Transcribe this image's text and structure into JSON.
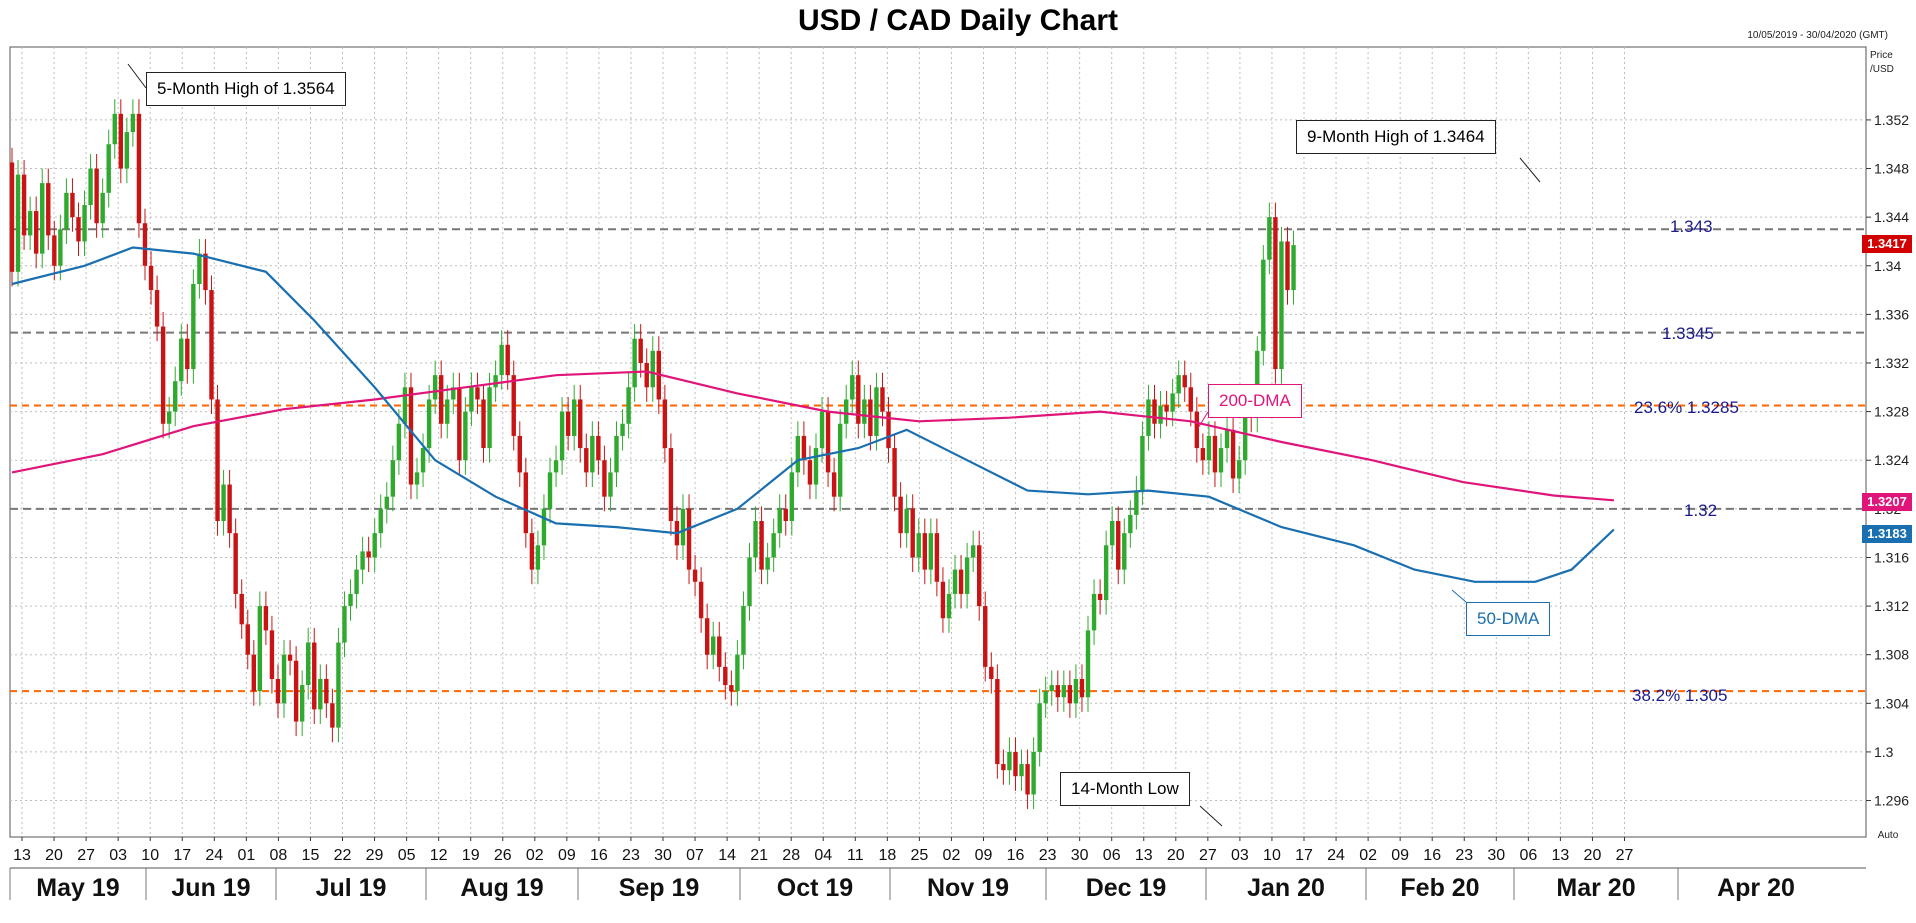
{
  "chart_data": {
    "type": "candlestick",
    "title": "USD / CAD Daily Chart",
    "date_range": "10/05/2019 - 30/04/2020 (GMT)",
    "price_unit": [
      "Price",
      "/USD"
    ],
    "ylim": [
      1.293,
      1.358
    ],
    "y_ticks": [
      "1.352",
      "1.348",
      "1.344",
      "1.34",
      "1.336",
      "1.332",
      "1.328",
      "1.324",
      "1.32",
      "1.316",
      "1.312",
      "1.308",
      "1.304",
      "1.3",
      "1.296"
    ],
    "x_day_ticks": [
      "13",
      "20",
      "27",
      "03",
      "10",
      "17",
      "24",
      "01",
      "08",
      "15",
      "22",
      "29",
      "05",
      "12",
      "19",
      "26",
      "02",
      "09",
      "16",
      "23",
      "30",
      "07",
      "14",
      "21",
      "28",
      "04",
      "11",
      "18",
      "25",
      "02",
      "09",
      "16",
      "23",
      "30",
      "06",
      "13",
      "20",
      "27",
      "03",
      "10",
      "17",
      "24",
      "02",
      "09",
      "16",
      "23",
      "30",
      "06",
      "13",
      "20",
      "27"
    ],
    "x_month_labels": [
      "May 19",
      "Jun 19",
      "Jul 19",
      "Aug 19",
      "Sep 19",
      "Oct 19",
      "Nov 19",
      "Dec 19",
      "Jan 20",
      "Feb 20",
      "Mar 20",
      "Apr 20"
    ],
    "x_corner_label": "Auto",
    "candles": [
      [
        1.3485,
        1.3395
      ],
      [
        1.3395,
        1.3475
      ],
      [
        1.3475,
        1.3425
      ],
      [
        1.3425,
        1.3445
      ],
      [
        1.3445,
        1.341
      ],
      [
        1.341,
        1.3468
      ],
      [
        1.3468,
        1.3425
      ],
      [
        1.3425,
        1.34
      ],
      [
        1.34,
        1.343
      ],
      [
        1.343,
        1.346
      ],
      [
        1.346,
        1.344
      ],
      [
        1.344,
        1.342
      ],
      [
        1.342,
        1.345
      ],
      [
        1.345,
        1.348
      ],
      [
        1.348,
        1.3435
      ],
      [
        1.3435,
        1.346
      ],
      [
        1.346,
        1.35
      ],
      [
        1.35,
        1.3525
      ],
      [
        1.3525,
        1.348
      ],
      [
        1.348,
        1.351
      ],
      [
        1.351,
        1.3525
      ],
      [
        1.3525,
        1.3435
      ],
      [
        1.3435,
        1.34
      ],
      [
        1.34,
        1.338
      ],
      [
        1.338,
        1.335
      ],
      [
        1.335,
        1.327
      ],
      [
        1.327,
        1.328
      ],
      [
        1.328,
        1.3305
      ],
      [
        1.3305,
        1.334
      ],
      [
        1.334,
        1.3315
      ],
      [
        1.3315,
        1.3385
      ],
      [
        1.3385,
        1.341
      ],
      [
        1.341,
        1.338
      ],
      [
        1.338,
        1.329
      ],
      [
        1.329,
        1.319
      ],
      [
        1.319,
        1.322
      ],
      [
        1.322,
        1.318
      ],
      [
        1.318,
        1.313
      ],
      [
        1.313,
        1.3105
      ],
      [
        1.3105,
        1.308
      ],
      [
        1.308,
        1.305
      ],
      [
        1.305,
        1.312
      ],
      [
        1.312,
        1.31
      ],
      [
        1.31,
        1.306
      ],
      [
        1.306,
        1.304
      ],
      [
        1.304,
        1.308
      ],
      [
        1.308,
        1.3075
      ],
      [
        1.3075,
        1.3025
      ],
      [
        1.3025,
        1.3055
      ],
      [
        1.3055,
        1.309
      ],
      [
        1.309,
        1.3035
      ],
      [
        1.3035,
        1.306
      ],
      [
        1.306,
        1.304
      ],
      [
        1.304,
        1.302
      ],
      [
        1.302,
        1.309
      ],
      [
        1.309,
        1.312
      ],
      [
        1.312,
        1.313
      ],
      [
        1.313,
        1.315
      ],
      [
        1.315,
        1.3165
      ],
      [
        1.3165,
        1.316
      ],
      [
        1.316,
        1.318
      ],
      [
        1.318,
        1.32
      ],
      [
        1.32,
        1.321
      ],
      [
        1.321,
        1.324
      ],
      [
        1.324,
        1.327
      ],
      [
        1.327,
        1.33
      ],
      [
        1.33,
        1.322
      ],
      [
        1.322,
        1.323
      ],
      [
        1.323,
        1.325
      ],
      [
        1.325,
        1.329
      ],
      [
        1.329,
        1.331
      ],
      [
        1.331,
        1.327
      ],
      [
        1.327,
        1.329
      ],
      [
        1.329,
        1.33
      ],
      [
        1.33,
        1.324
      ],
      [
        1.324,
        1.328
      ],
      [
        1.328,
        1.33
      ],
      [
        1.33,
        1.329
      ],
      [
        1.329,
        1.325
      ],
      [
        1.325,
        1.33
      ],
      [
        1.33,
        1.331
      ],
      [
        1.331,
        1.3335
      ],
      [
        1.3335,
        1.331
      ],
      [
        1.331,
        1.326
      ],
      [
        1.326,
        1.323
      ],
      [
        1.323,
        1.318
      ],
      [
        1.318,
        1.315
      ],
      [
        1.315,
        1.317
      ],
      [
        1.317,
        1.32
      ],
      [
        1.32,
        1.323
      ],
      [
        1.323,
        1.324
      ],
      [
        1.324,
        1.328
      ],
      [
        1.328,
        1.326
      ],
      [
        1.326,
        1.329
      ],
      [
        1.329,
        1.325
      ],
      [
        1.325,
        1.323
      ],
      [
        1.323,
        1.326
      ],
      [
        1.326,
        1.324
      ],
      [
        1.324,
        1.321
      ],
      [
        1.321,
        1.323
      ],
      [
        1.323,
        1.326
      ],
      [
        1.326,
        1.327
      ],
      [
        1.327,
        1.33
      ],
      [
        1.33,
        1.334
      ],
      [
        1.334,
        1.332
      ],
      [
        1.332,
        1.33
      ],
      [
        1.33,
        1.333
      ],
      [
        1.333,
        1.329
      ],
      [
        1.329,
        1.325
      ],
      [
        1.325,
        1.319
      ],
      [
        1.319,
        1.317
      ],
      [
        1.317,
        1.32
      ],
      [
        1.32,
        1.315
      ],
      [
        1.315,
        1.314
      ],
      [
        1.314,
        1.311
      ],
      [
        1.311,
        1.308
      ],
      [
        1.308,
        1.3095
      ],
      [
        1.3095,
        1.307
      ],
      [
        1.307,
        1.3055
      ],
      [
        1.3055,
        1.305
      ],
      [
        1.305,
        1.308
      ],
      [
        1.308,
        1.312
      ],
      [
        1.312,
        1.316
      ],
      [
        1.316,
        1.319
      ],
      [
        1.319,
        1.315
      ],
      [
        1.315,
        1.316
      ],
      [
        1.316,
        1.318
      ],
      [
        1.318,
        1.32
      ],
      [
        1.32,
        1.319
      ],
      [
        1.319,
        1.323
      ],
      [
        1.323,
        1.326
      ],
      [
        1.326,
        1.324
      ],
      [
        1.324,
        1.322
      ],
      [
        1.322,
        1.325
      ],
      [
        1.325,
        1.328
      ],
      [
        1.328,
        1.323
      ],
      [
        1.323,
        1.321
      ],
      [
        1.321,
        1.327
      ],
      [
        1.327,
        1.329
      ],
      [
        1.329,
        1.331
      ],
      [
        1.331,
        1.327
      ],
      [
        1.327,
        1.329
      ],
      [
        1.329,
        1.326
      ],
      [
        1.326,
        1.33
      ],
      [
        1.33,
        1.328
      ],
      [
        1.328,
        1.325
      ],
      [
        1.325,
        1.321
      ],
      [
        1.321,
        1.318
      ],
      [
        1.318,
        1.32
      ],
      [
        1.32,
        1.316
      ],
      [
        1.316,
        1.318
      ],
      [
        1.318,
        1.315
      ],
      [
        1.315,
        1.318
      ],
      [
        1.318,
        1.314
      ],
      [
        1.314,
        1.311
      ],
      [
        1.311,
        1.313
      ],
      [
        1.313,
        1.315
      ],
      [
        1.315,
        1.313
      ],
      [
        1.313,
        1.316
      ],
      [
        1.316,
        1.317
      ],
      [
        1.317,
        1.312
      ],
      [
        1.312,
        1.307
      ],
      [
        1.307,
        1.306
      ],
      [
        1.306,
        1.299
      ],
      [
        1.299,
        1.2985
      ],
      [
        1.2985,
        1.3
      ],
      [
        1.3,
        1.298
      ],
      [
        1.298,
        1.299
      ],
      [
        1.299,
        1.2965
      ],
      [
        1.2965,
        1.3
      ],
      [
        1.3,
        1.304
      ],
      [
        1.304,
        1.305
      ],
      [
        1.305,
        1.3055
      ],
      [
        1.3055,
        1.3045
      ],
      [
        1.3045,
        1.3055
      ],
      [
        1.3055,
        1.304
      ],
      [
        1.304,
        1.306
      ],
      [
        1.306,
        1.3045
      ],
      [
        1.3045,
        1.31
      ],
      [
        1.31,
        1.313
      ],
      [
        1.313,
        1.3125
      ],
      [
        1.3125,
        1.317
      ],
      [
        1.317,
        1.319
      ],
      [
        1.319,
        1.315
      ],
      [
        1.315,
        1.318
      ],
      [
        1.318,
        1.3195
      ],
      [
        1.3195,
        1.3215
      ],
      [
        1.3215,
        1.326
      ],
      [
        1.326,
        1.329
      ],
      [
        1.329,
        1.327
      ],
      [
        1.327,
        1.3285
      ],
      [
        1.3285,
        1.328
      ],
      [
        1.328,
        1.3295
      ],
      [
        1.3295,
        1.331
      ],
      [
        1.331,
        1.33
      ],
      [
        1.33,
        1.328
      ],
      [
        1.328,
        1.325
      ],
      [
        1.325,
        1.324
      ],
      [
        1.324,
        1.326
      ],
      [
        1.326,
        1.323
      ],
      [
        1.323,
        1.325
      ],
      [
        1.325,
        1.3265
      ],
      [
        1.3265,
        1.3225
      ],
      [
        1.3225,
        1.324
      ],
      [
        1.324,
        1.329
      ],
      [
        1.329,
        1.3275
      ],
      [
        1.3275,
        1.333
      ],
      [
        1.333,
        1.3405
      ],
      [
        1.3405,
        1.344
      ],
      [
        1.344,
        1.3315
      ],
      [
        1.3315,
        1.342
      ],
      [
        1.342,
        1.338
      ],
      [
        1.338,
        1.3417
      ]
    ],
    "series": [
      {
        "name": "200-DMA",
        "color": "#e0157a",
        "points": [
          [
            0,
            1.323
          ],
          [
            15,
            1.3245
          ],
          [
            30,
            1.3268
          ],
          [
            45,
            1.3282
          ],
          [
            60,
            1.329
          ],
          [
            75,
            1.33
          ],
          [
            90,
            1.331
          ],
          [
            105,
            1.3313
          ],
          [
            120,
            1.3295
          ],
          [
            135,
            1.328
          ],
          [
            150,
            1.3272
          ],
          [
            165,
            1.3275
          ],
          [
            180,
            1.328
          ],
          [
            195,
            1.3272
          ],
          [
            210,
            1.3255
          ],
          [
            225,
            1.324
          ],
          [
            240,
            1.3222
          ],
          [
            255,
            1.3211
          ],
          [
            265,
            1.3207
          ]
        ]
      },
      {
        "name": "50-DMA",
        "color": "#1a6fb0",
        "points": [
          [
            0,
            1.3385
          ],
          [
            12,
            1.34
          ],
          [
            20,
            1.3415
          ],
          [
            30,
            1.341
          ],
          [
            42,
            1.3395
          ],
          [
            50,
            1.3355
          ],
          [
            60,
            1.33
          ],
          [
            70,
            1.324
          ],
          [
            80,
            1.321
          ],
          [
            90,
            1.3188
          ],
          [
            100,
            1.3185
          ],
          [
            110,
            1.318
          ],
          [
            120,
            1.32
          ],
          [
            130,
            1.324
          ],
          [
            140,
            1.325
          ],
          [
            148,
            1.3265
          ],
          [
            158,
            1.324
          ],
          [
            168,
            1.3215
          ],
          [
            178,
            1.3212
          ],
          [
            188,
            1.3215
          ],
          [
            198,
            1.321
          ],
          [
            210,
            1.3185
          ],
          [
            222,
            1.317
          ],
          [
            232,
            1.315
          ],
          [
            242,
            1.314
          ],
          [
            252,
            1.314
          ],
          [
            258,
            1.315
          ],
          [
            265,
            1.3183
          ]
        ]
      }
    ],
    "levels": [
      {
        "value": 1.343,
        "label": "1.343",
        "style": "grey-dashed"
      },
      {
        "value": 1.3345,
        "label": "1.3345",
        "style": "grey-dashed"
      },
      {
        "value": 1.3285,
        "label": "23.6%   1.3285",
        "style": "orange-dashed"
      },
      {
        "value": 1.32,
        "label": "1.32",
        "style": "grey-dashed"
      },
      {
        "value": 1.305,
        "label": "38.2%   1.305",
        "style": "orange-dashed"
      }
    ],
    "price_tags": [
      {
        "value": 1.3417,
        "label": "1.3417",
        "color": "#d20000"
      },
      {
        "value": 1.3207,
        "label": "1.3207",
        "color": "#e0157a"
      },
      {
        "value": 1.3183,
        "label": "1.3183",
        "color": "#1a6fb0"
      }
    ],
    "annotations": {
      "high5": "5-Month High of 1.3564",
      "high9": "9-Month High of 1.3464",
      "low14": "14-Month Low",
      "dma200": "200-DMA",
      "dma50": "50-DMA"
    },
    "grid": true,
    "colors": {
      "up": "#2faa2f",
      "down": "#c81414",
      "dma200": "#e0157a",
      "dma50": "#1a6fb0",
      "fib": "#ff6600",
      "level": "#777777"
    }
  }
}
